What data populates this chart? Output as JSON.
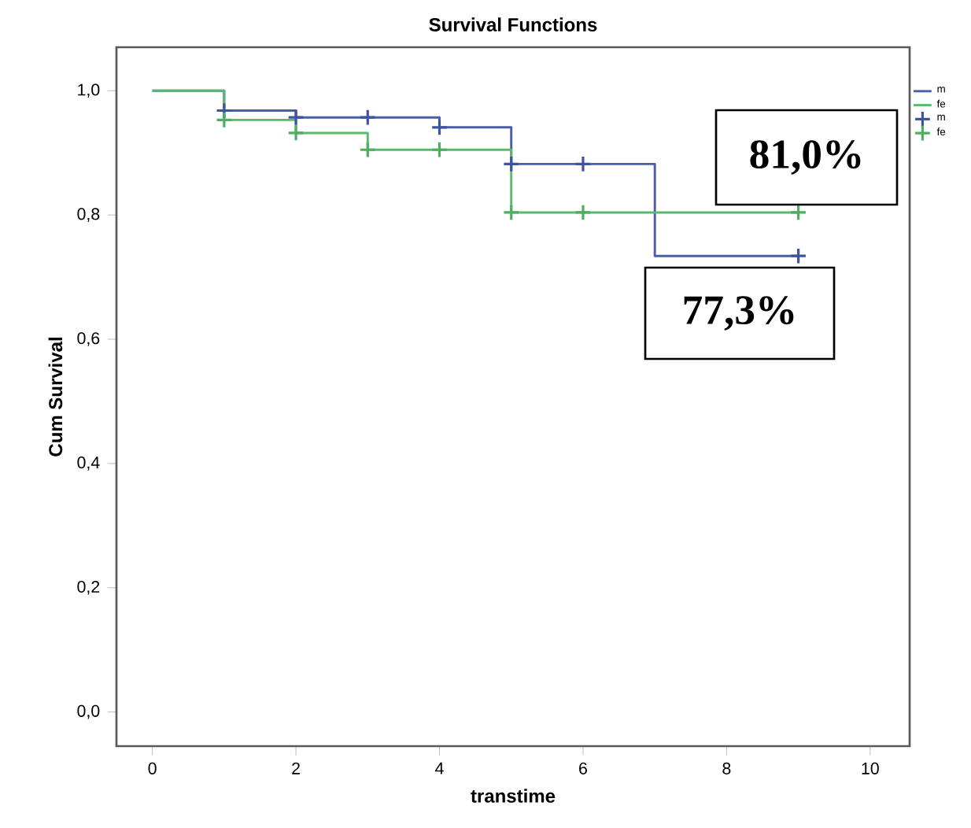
{
  "chart_data": {
    "type": "step",
    "title": "Survival Functions",
    "xlabel": "transtime",
    "ylabel": "Cum Survival",
    "xlim": [
      -0.5,
      10.55
    ],
    "xticks": [
      0,
      2,
      4,
      6,
      8,
      10
    ],
    "ylim": [
      -0.055,
      1.07
    ],
    "yticks": [
      {
        "value": 0,
        "label": "0,0"
      },
      {
        "value": 0.2,
        "label": "0,2"
      },
      {
        "value": 0.4,
        "label": "0,4"
      },
      {
        "value": 0.6,
        "label": "0,6"
      },
      {
        "value": 0.8,
        "label": "0,8"
      },
      {
        "value": 1,
        "label": "1,0"
      }
    ],
    "legend": "right",
    "annotations": [
      "81,0%",
      "77,3%"
    ],
    "series": [
      {
        "name": "m",
        "color": "#4a5fa8",
        "x": [
          0,
          1,
          2,
          4,
          5,
          7,
          9
        ],
        "values": [
          1,
          0.968,
          0.957,
          0.941,
          0.882,
          0.734,
          0.734
        ]
      },
      {
        "name": "fe",
        "color": "#5cb86e",
        "x": [
          0,
          1,
          2,
          3,
          5,
          9
        ],
        "values": [
          1,
          0.953,
          0.932,
          0.905,
          0.804,
          0.804
        ]
      },
      {
        "name": "m",
        "type": "scatter",
        "marker": "cross",
        "color": "#3d55a0",
        "x": [
          1,
          2,
          3,
          4,
          5,
          6,
          9
        ],
        "values": [
          0.968,
          0.957,
          0.957,
          0.941,
          0.882,
          0.882,
          0.734
        ]
      },
      {
        "name": "fe",
        "type": "scatter",
        "marker": "cross",
        "color": "#4fae5f",
        "x": [
          1,
          2,
          3,
          4,
          5,
          6,
          9
        ],
        "values": [
          0.953,
          0.932,
          0.905,
          0.905,
          0.804,
          0.804,
          0.804
        ]
      }
    ]
  }
}
